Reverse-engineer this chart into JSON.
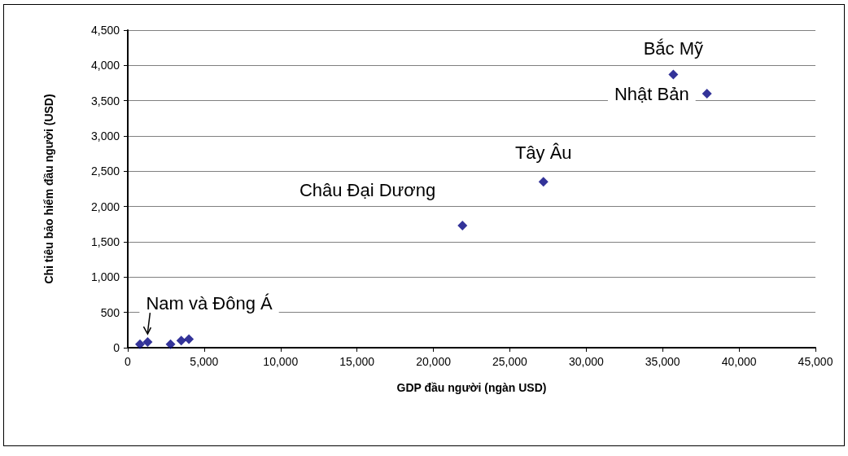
{
  "chart_data": {
    "type": "scatter",
    "xlabel": "GDP đầu người (ngàn USD)",
    "ylabel": "Chi tiêu bảo hiểm đầu người (USD)",
    "x": [
      800,
      1300,
      2800,
      3500,
      4000,
      21900,
      27200,
      35700,
      37900
    ],
    "series": [
      {
        "color": "#000080",
        "values": [
          50,
          80,
          50,
          100,
          120,
          1730,
          2350,
          3870,
          3600
        ]
      }
    ],
    "xlim": [
      0,
      45000
    ],
    "xticks": [
      0,
      {
        "value": 5000,
        "label": "5,000"
      },
      {
        "value": 10000,
        "label": "10,000"
      },
      {
        "value": 15000,
        "label": "15,000"
      },
      {
        "value": 20000,
        "label": "20,000"
      },
      {
        "value": 25000,
        "label": "25,000"
      },
      {
        "value": 30000,
        "label": "30,000"
      },
      {
        "value": 35000,
        "label": "35,000"
      },
      {
        "value": 40000,
        "label": "40,000"
      },
      {
        "value": 45000,
        "label": "45,000"
      }
    ],
    "ylim": [
      0,
      4500
    ],
    "yticks": [
      0,
      500,
      {
        "value": 1000,
        "label": "1,000"
      },
      {
        "value": 1500,
        "label": "1,500"
      },
      {
        "value": 2000,
        "label": "2,000"
      },
      {
        "value": 2500,
        "label": "2,500"
      },
      {
        "value": 3000,
        "label": "3,000"
      },
      {
        "value": 3500,
        "label": "3,500"
      },
      {
        "value": 4000,
        "label": "4,000"
      },
      {
        "value": 4500,
        "label": "4,500"
      }
    ],
    "grid": "y",
    "marker": "diamond",
    "annotations": [
      {
        "text": "Nam và Đông Á",
        "x": 1300,
        "y": 80
      },
      {
        "text": "Châu Đại Dương",
        "x": 21900,
        "y": 1730
      },
      {
        "text": "Tây Âu",
        "x": 27200,
        "y": 2350
      },
      {
        "text": "Bắc Mỹ",
        "x": 35700,
        "y": 3870
      },
      {
        "text": "Nhật Bản",
        "x": 37900,
        "y": 3600
      }
    ]
  }
}
